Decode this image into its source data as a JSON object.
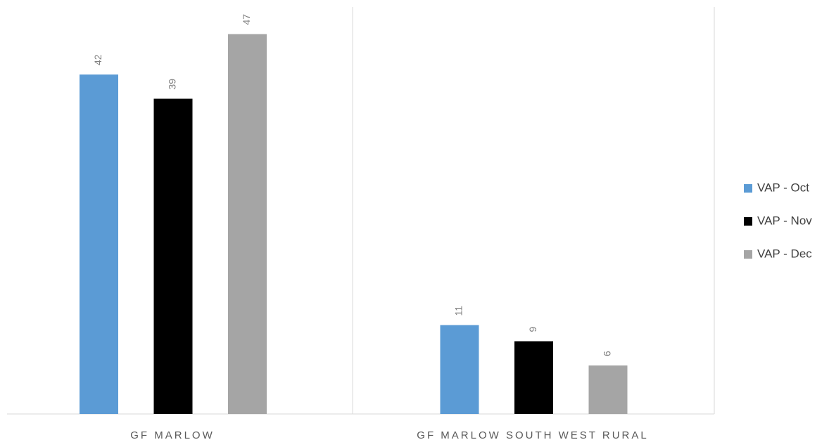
{
  "chart_data": {
    "type": "bar",
    "categories": [
      "GF MARLOW",
      "GF MARLOW SOUTH WEST RURAL"
    ],
    "series": [
      {
        "name": "VAP - Oct",
        "values": [
          42,
          11
        ],
        "color": "#5b9bd5"
      },
      {
        "name": "VAP - Nov",
        "values": [
          39,
          9
        ],
        "color": "#000000"
      },
      {
        "name": "VAP - Dec",
        "values": [
          47,
          6
        ],
        "color": "#a5a5a5"
      }
    ],
    "ylim": [
      0,
      50
    ],
    "grid": false,
    "legend_position": "right",
    "data_labels": true,
    "data_label_rotation": "vertical",
    "axis_color": "#d9d9d9"
  }
}
